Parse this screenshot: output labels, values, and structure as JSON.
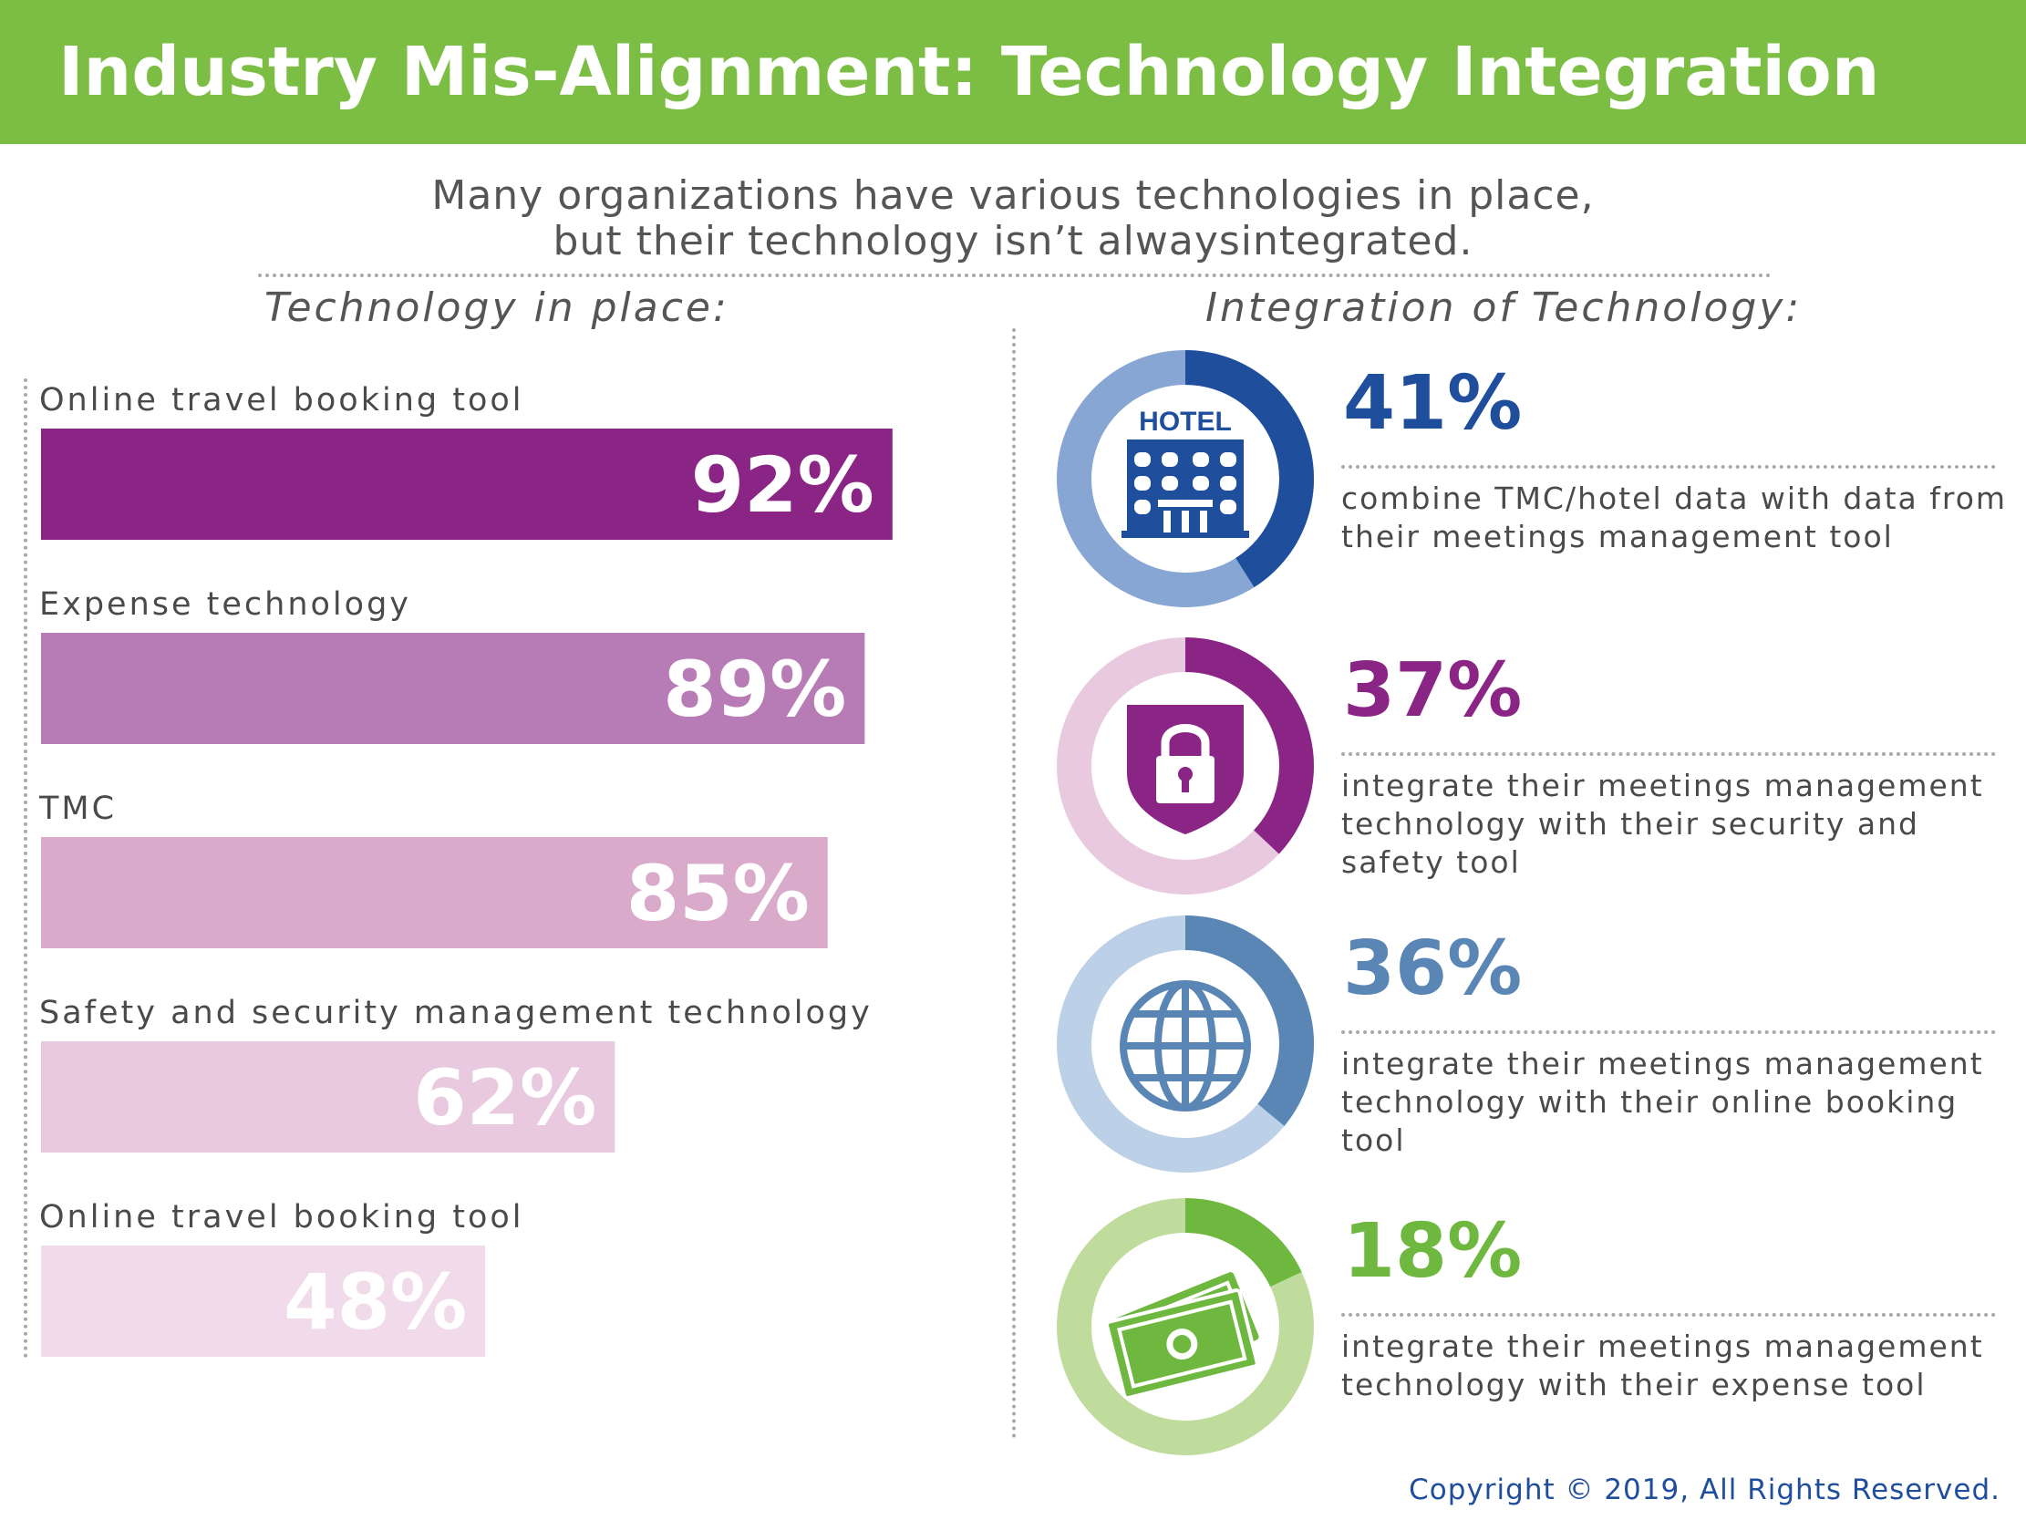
{
  "title": "Industry Mis-Alignment: Technology Integration",
  "subtitle": {
    "line1": "Many organizations have various technologies in place,",
    "line2": "but their technology isn’t alwaysintegrated."
  },
  "left_heading": "Technology in place:",
  "right_heading": "Integration of Technology:",
  "copyright": "Copyright © 2019, All Rights Reserved.",
  "chart_data": [
    {
      "type": "bar",
      "orientation": "horizontal",
      "title": "Technology in place:",
      "xlim": [
        0,
        100
      ],
      "unit": "%",
      "categories": [
        "Online travel booking tool",
        "Expense technology",
        "TMC",
        "Safety and security management technology",
        "Online travel booking tool"
      ],
      "values": [
        92,
        89,
        85,
        62,
        48
      ],
      "value_labels": [
        "92%",
        "89%",
        "85%",
        "62%",
        "48%"
      ],
      "colors": [
        "#8A2585",
        "#B77BB6",
        "#DAAACB",
        "#E9C9E0",
        "#F1DBEB"
      ]
    },
    {
      "type": "pie",
      "style": "donut",
      "title": "Integration of Technology:",
      "unit": "%",
      "items": [
        {
          "value": 41,
          "label": "41%",
          "description": "combine TMC/hotel data with data from their meetings management tool",
          "icon": "hotel-building-icon",
          "icon_text": "HOTEL",
          "color": "#1F4E9C",
          "track_color": "#88A6D3",
          "text_color": "#1F4E9C"
        },
        {
          "value": 37,
          "label": "37%",
          "description": "integrate their meetings management technology with their security and safety tool",
          "icon": "security-lock-icon",
          "color": "#8A2585",
          "track_color": "#E9C9E0",
          "text_color": "#8A2585"
        },
        {
          "value": 36,
          "label": "36%",
          "description": "integrate their meetings management technology with their online booking tool",
          "icon": "globe-icon",
          "color": "#5A86B5",
          "track_color": "#BCD0E8",
          "text_color": "#5A86B5"
        },
        {
          "value": 18,
          "label": "18%",
          "description": "integrate their meetings management technology with their expense tool",
          "icon": "money-icon",
          "color": "#6FB83F",
          "track_color": "#BFDC9C",
          "text_color": "#6FB83F"
        }
      ]
    }
  ]
}
